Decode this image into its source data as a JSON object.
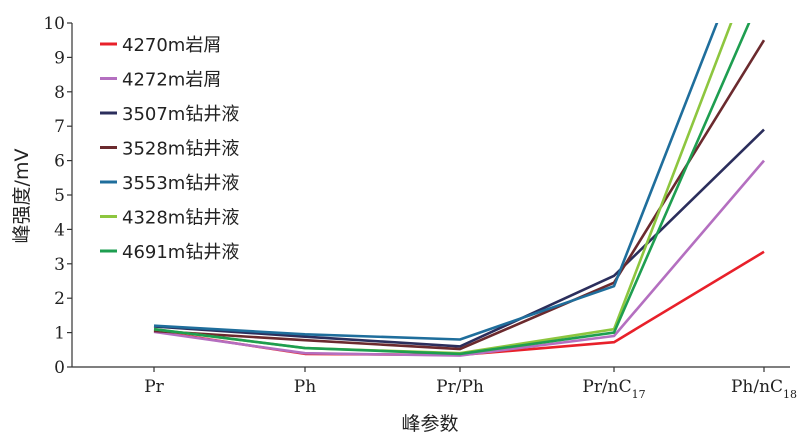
{
  "chart_data": {
    "type": "line",
    "title": "",
    "xlabel": "峰参数",
    "ylabel": "峰强度/mV",
    "categories": [
      {
        "base": "Pr",
        "sub": ""
      },
      {
        "base": "Ph",
        "sub": ""
      },
      {
        "base": "Pr/Ph",
        "sub": ""
      },
      {
        "base": "Pr/nC",
        "sub": "17"
      },
      {
        "base": "Ph/nC",
        "sub": "18"
      }
    ],
    "ylim": [
      0,
      10
    ],
    "yticks": [
      0,
      1,
      2,
      3,
      4,
      5,
      6,
      7,
      8,
      9,
      10
    ],
    "grid": false,
    "legend_position": "top-left",
    "series": [
      {
        "name": "4270m岩屑",
        "color": "#e8202a",
        "values": [
          1.05,
          0.38,
          0.35,
          0.72,
          3.35
        ]
      },
      {
        "name": "4272m岩屑",
        "color": "#b46fc0",
        "values": [
          1.02,
          0.4,
          0.33,
          0.9,
          6.0
        ]
      },
      {
        "name": "3507m钻井液",
        "color": "#2b2e5c",
        "values": [
          1.18,
          0.88,
          0.6,
          2.65,
          6.9
        ]
      },
      {
        "name": "3528m钻井液",
        "color": "#6b2a2e",
        "values": [
          1.05,
          0.78,
          0.52,
          2.45,
          9.5
        ]
      },
      {
        "name": "3553m钻井液",
        "color": "#1f6e9c",
        "values": [
          1.2,
          0.95,
          0.8,
          2.35,
          13.5
        ]
      },
      {
        "name": "4328m钻井液",
        "color": "#8dc63f",
        "values": [
          1.1,
          0.55,
          0.4,
          1.1,
          12.5
        ]
      },
      {
        "name": "4691m钻井液",
        "color": "#1e9e50",
        "values": [
          1.1,
          0.55,
          0.38,
          1.0,
          11.0
        ]
      }
    ]
  }
}
